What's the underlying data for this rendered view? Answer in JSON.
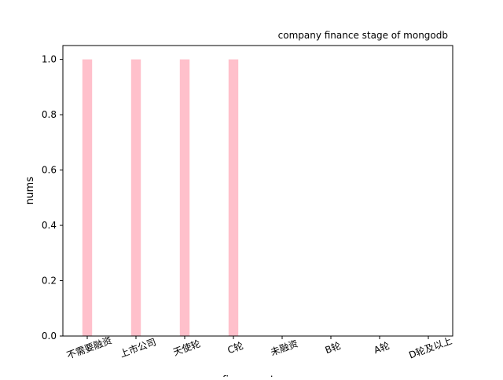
{
  "chart_data": {
    "type": "bar",
    "title": "company finance stage of mongodb",
    "xlabel": "finance_stage",
    "ylabel": "nums",
    "categories": [
      "不需要融资",
      "上市公司",
      "天使轮",
      "C轮",
      "未融资",
      "B轮",
      "A轮",
      "D轮及以上"
    ],
    "values": [
      1,
      1,
      1,
      1,
      0,
      0,
      0,
      0
    ],
    "ylim": [
      0,
      1.05
    ],
    "yticks": [
      0.0,
      0.2,
      0.4,
      0.6,
      0.8,
      1.0
    ],
    "ytick_labels": [
      "0.0",
      "0.2",
      "0.4",
      "0.6",
      "0.8",
      "1.0"
    ],
    "bar_color": "#ffc0cb",
    "grid": false,
    "legend": "none"
  }
}
